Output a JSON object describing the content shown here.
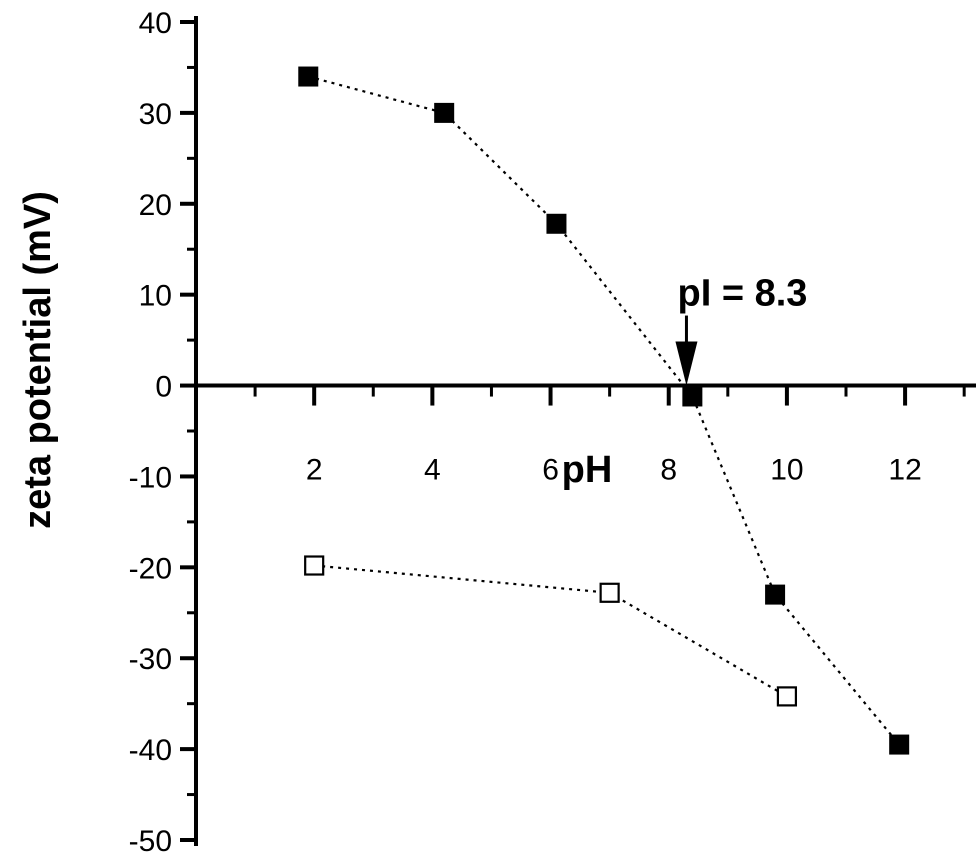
{
  "chart_data": {
    "type": "scatter",
    "xlabel": "pH",
    "ylabel": "zeta potential (mV)",
    "xlim": [
      0,
      13.2
    ],
    "ylim": [
      -50,
      40
    ],
    "x_ticks": [
      2,
      4,
      6,
      8,
      10,
      12
    ],
    "y_ticks": [
      40,
      30,
      20,
      10,
      0,
      -10,
      -20,
      -30,
      -40,
      -50
    ],
    "grid": false,
    "series": [
      {
        "marker": "filled-square",
        "color": "#000000",
        "line": "dotted",
        "points": [
          {
            "x": 1.9,
            "y": 34
          },
          {
            "x": 4.2,
            "y": 30
          },
          {
            "x": 6.1,
            "y": 17.8
          },
          {
            "x": 8.4,
            "y": -1.2
          },
          {
            "x": 9.8,
            "y": -23
          },
          {
            "x": 11.9,
            "y": -39.5
          }
        ]
      },
      {
        "marker": "open-square",
        "color": "#000000",
        "line": "dotted",
        "points": [
          {
            "x": 2.0,
            "y": -19.8
          },
          {
            "x": 7.0,
            "y": -22.8
          },
          {
            "x": 10.0,
            "y": -34.2
          }
        ]
      }
    ],
    "annotations": [
      {
        "text": "pI = 8.3",
        "x": 8.3,
        "y": 0
      }
    ]
  }
}
